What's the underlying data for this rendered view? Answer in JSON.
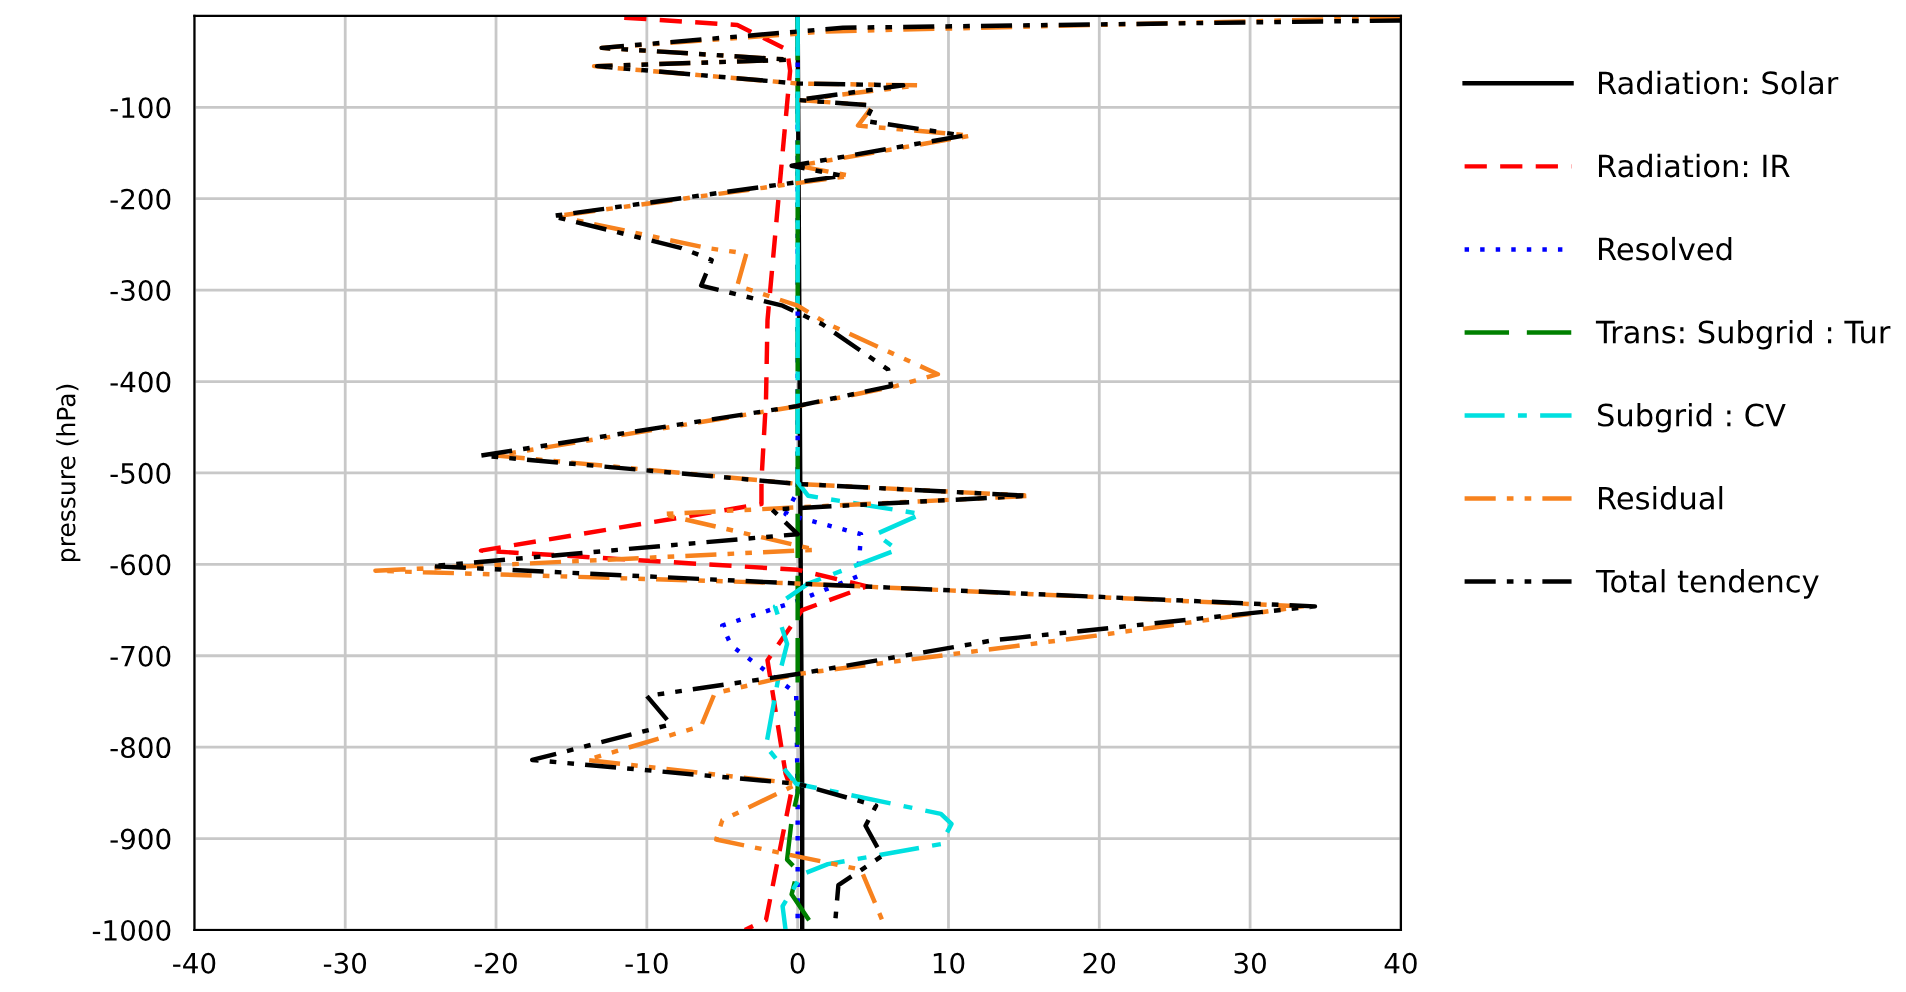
{
  "chart_data": {
    "type": "line",
    "ylabel": "pressure (hPa)",
    "xlim": [
      -40,
      40
    ],
    "xticks": [
      -40,
      -30,
      -20,
      -10,
      0,
      10,
      20,
      30,
      40
    ],
    "ylim": [
      -1000,
      0
    ],
    "yticks": [
      -100,
      -200,
      -300,
      -400,
      -500,
      -600,
      -700,
      -800,
      -900,
      -1000
    ],
    "grid": true,
    "legend": "right",
    "series": [
      {
        "name": "Radiation: Solar",
        "color": "#000000",
        "line_style": "solid",
        "x": [
          0,
          0.1,
          0.2,
          0.3,
          0.3
        ],
        "values": [
          0,
          -300,
          -600,
          -850,
          -1000
        ]
      },
      {
        "name": "Radiation: IR",
        "color": "#ff0000",
        "line_style": "dashed",
        "x": [
          -11.5,
          -4,
          -0.7,
          -0.5,
          -1,
          -2,
          -2.1,
          -2.4,
          -2.4,
          -21,
          0,
          4.6,
          0.3,
          -2,
          -0.8,
          -0.4,
          -2.1,
          -3.5
        ],
        "values": [
          -2,
          -10,
          -37,
          -60,
          -150,
          -333,
          -420,
          -508,
          -534,
          -585,
          -606,
          -624,
          -650,
          -705,
          -829,
          -847,
          -989,
          -1000
        ]
      },
      {
        "name": "Resolved",
        "color": "#0000ff",
        "line_style": "dotted",
        "x": [
          0,
          0,
          -0.8,
          4.2,
          4,
          0,
          -5,
          -4.4,
          -0.1,
          0,
          0
        ],
        "values": [
          0,
          -520,
          -545,
          -567,
          -613,
          -640,
          -667,
          -689,
          -741,
          -850,
          -1000
        ]
      },
      {
        "name": "Trans: Subgrid : Tur",
        "color": "#008000",
        "line_style": "long_dashed",
        "x": [
          0,
          0,
          -0.4,
          -0.7,
          0,
          -0.4,
          1.2
        ],
        "values": [
          0,
          -850,
          -880,
          -923,
          -935,
          -961,
          -1000
        ]
      },
      {
        "name": "Subgrid : CV",
        "color": "#00e0e0",
        "line_style": "dashdot",
        "x": [
          0,
          0,
          0.7,
          8.2,
          5.2,
          6.6,
          0.7,
          -1.5,
          -0.7,
          -1.3,
          -2.1,
          -0.1,
          9.5,
          10.2,
          9.5,
          2,
          0.3,
          -1,
          -0.8
        ],
        "values": [
          0,
          -510,
          -525,
          -545,
          -567,
          -584,
          -621,
          -646,
          -687,
          -726,
          -799,
          -840,
          -873,
          -884,
          -906,
          -928,
          -939,
          -974,
          -1000
        ]
      },
      {
        "name": "Residual",
        "color": "#f7821e",
        "line_style": "dashdotdot",
        "x": [
          40,
          2,
          -13,
          -0.5,
          -13.5,
          0,
          8,
          0,
          5,
          4,
          11.5,
          0,
          3.5,
          -16,
          -6,
          -3.4,
          -4,
          0,
          2,
          9.3,
          6.5,
          0,
          -20,
          0,
          15.5,
          -9,
          1.2,
          -28,
          0,
          33.5,
          19.8,
          0,
          -5.5,
          -6.4,
          -14,
          0,
          -5,
          -5.4,
          4.2,
          5.6,
          5.8
        ],
        "values": [
          -2,
          -17,
          -35,
          -48,
          -55,
          -74,
          -76,
          -92,
          -98,
          -120,
          -131,
          -164,
          -175,
          -219,
          -254,
          -260,
          -295,
          -317,
          -337,
          -392,
          -405,
          -427,
          -481,
          -512,
          -525,
          -545,
          -584,
          -607,
          -621,
          -646,
          -678,
          -720,
          -741,
          -777,
          -814,
          -840,
          -880,
          -901,
          -934,
          -989,
          -1000
        ]
      },
      {
        "name": "Total tendency",
        "color": "#000000",
        "line_style": "dashdotdot",
        "x": [
          40,
          3,
          -13,
          -0.5,
          -13.3,
          0,
          7,
          0,
          5,
          4.5,
          11,
          -0.4,
          3,
          -16.3,
          -7.7,
          -5.7,
          -6.4,
          -1,
          1.6,
          6,
          6.2,
          -0.1,
          -21,
          0,
          15.3,
          -1.7,
          0,
          -24.3,
          0,
          34.3,
          13,
          0,
          -10,
          -8.4,
          -17.6,
          0,
          5.2,
          4.5,
          5.6,
          2.7,
          2.5,
          2.5
        ],
        "values": [
          -5,
          -13,
          -35,
          -48,
          -55,
          -74,
          -76,
          -92,
          -98,
          -115,
          -131,
          -164,
          -175,
          -219,
          -254,
          -267,
          -295,
          -317,
          -337,
          -387,
          -405,
          -427,
          -481,
          -512,
          -525,
          -540,
          -567,
          -602,
          -621,
          -646,
          -683,
          -720,
          -744,
          -775,
          -814,
          -840,
          -864,
          -886,
          -919,
          -951,
          -989,
          -1000
        ]
      }
    ]
  }
}
